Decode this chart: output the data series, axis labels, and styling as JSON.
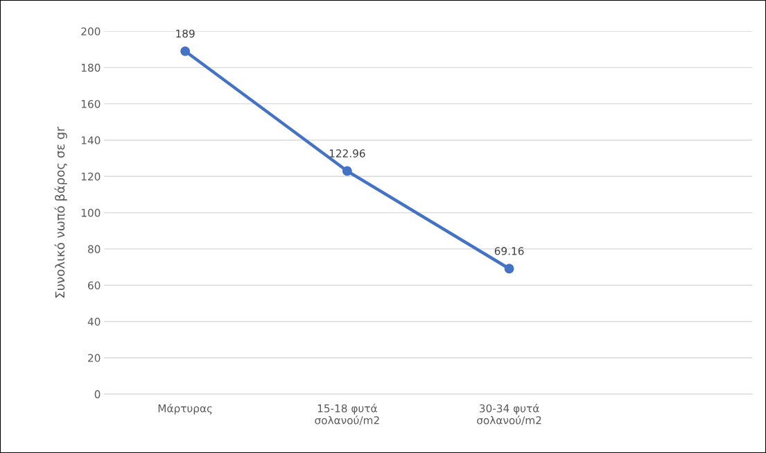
{
  "chart_data": {
    "type": "line",
    "ylabel": "Συνολικό νωπό βάρος σε gr",
    "categories": [
      "Μάρτυρας",
      "15-18 φυτά\nσολανού/m2",
      "30-34 φυτά\nσολανού/m2",
      null
    ],
    "series": [
      {
        "color": "#4472c4",
        "values": [
          189,
          122.96,
          69.16,
          null
        ]
      }
    ],
    "ylim": [
      0,
      200
    ],
    "yticks": [
      0,
      20,
      40,
      60,
      80,
      100,
      120,
      140,
      160,
      180,
      200
    ],
    "grid": "y",
    "marker": "circle",
    "line_style": "solid",
    "data_labels": true,
    "legend": false
  }
}
